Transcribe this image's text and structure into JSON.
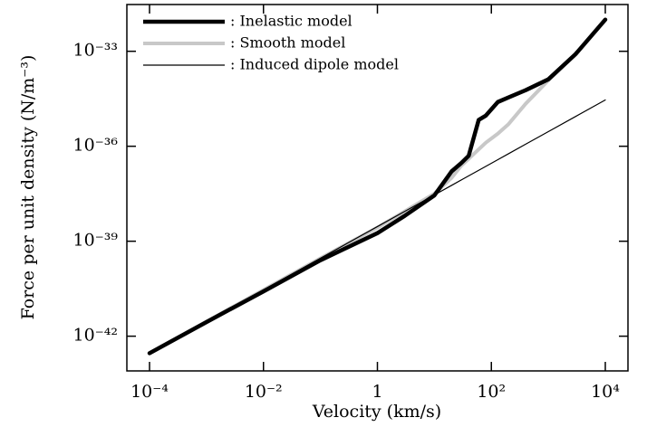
{
  "chart_data": {
    "type": "line",
    "xlabel": "Velocity (km/s)",
    "ylabel": "Force per unit density (N/m⁻³)",
    "xscale": "log",
    "yscale": "log",
    "x": [
      0.0001,
      0.001,
      0.01,
      0.1,
      1,
      3,
      10,
      20,
      30,
      40,
      60,
      80,
      130,
      200,
      400,
      1000,
      3000,
      10000
    ],
    "series": [
      {
        "name": ": Inelastic model",
        "color": "#000000",
        "linewidth": 4.5,
        "values": [
          2.9e-43,
          2.8e-42,
          2.6e-41,
          2.5e-40,
          1.8e-39,
          6.3e-39,
          2.8e-38,
          1.6e-37,
          3e-37,
          5e-37,
          6.8e-36,
          9.3e-36,
          2.5e-35,
          3.5e-35,
          5.9e-35,
          1.3e-34,
          8.1e-34,
          1e-32
        ]
      },
      {
        "name": ": Smooth model",
        "color": "#c8c8c8",
        "linewidth": 4,
        "values": [
          2.9e-43,
          2.9e-42,
          2.9e-41,
          2.9e-40,
          2.7e-39,
          8.7e-39,
          3.2e-38,
          1e-37,
          2.5e-37,
          4e-37,
          8e-37,
          1.3e-36,
          2.5e-36,
          5e-36,
          2.2e-35,
          1.2e-34,
          8.1e-34,
          1e-32
        ]
      },
      {
        "name": ": Induced dipole model",
        "color": "#000000",
        "linewidth": 1.2,
        "values": [
          2.9e-43,
          2.9e-42,
          2.9e-41,
          2.9e-40,
          2.9e-39,
          8.7e-39,
          2.9e-38,
          5.8e-38,
          8.7e-38,
          1.16e-37,
          1.74e-37,
          2.32e-37,
          3.77e-37,
          5.8e-37,
          1.16e-36,
          2.9e-36,
          8.7e-36,
          2.9e-35
        ]
      }
    ],
    "xlim": [
      4e-05,
      25000.0
    ],
    "ylim": [
      8e-44,
      3e-32
    ],
    "xticks": [
      {
        "value": 0.0001,
        "label": "10⁻⁴"
      },
      {
        "value": 0.01,
        "label": "10⁻²"
      },
      1,
      {
        "value": 100,
        "label": "10²"
      },
      {
        "value": 10000,
        "label": "10⁴"
      }
    ],
    "yticks": [
      {
        "value": 1e-42,
        "label": "10⁻⁴²"
      },
      {
        "value": 1e-39,
        "label": "10⁻³⁹"
      },
      {
        "value": 1e-36,
        "label": "10⁻³⁶"
      },
      {
        "value": 1e-33,
        "label": "10⁻³³"
      }
    ],
    "grid": false,
    "legend": "top-left"
  }
}
